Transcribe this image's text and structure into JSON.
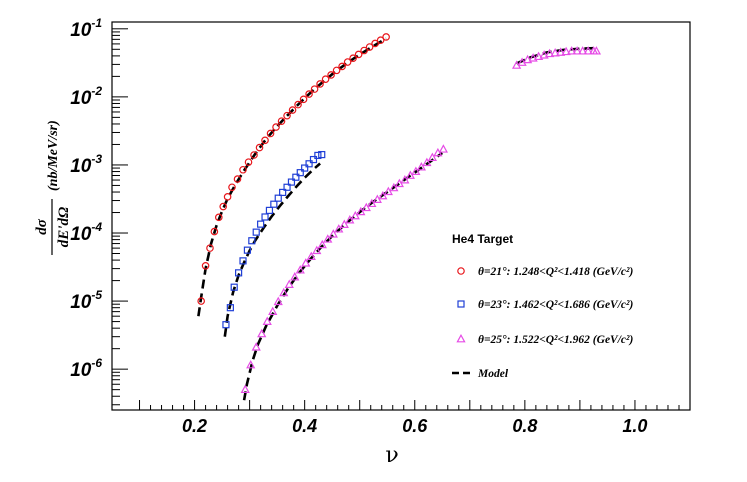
{
  "chart_data": {
    "type": "scatter",
    "xlabel": "ν",
    "ylabel": {
      "numerator": "dσ",
      "denominator": "dE'dΩ",
      "unit": "(nb/MeV/sr)"
    },
    "xlim": [
      0.05,
      1.1
    ],
    "ylim_log10": [
      -6.6,
      -0.9
    ],
    "yscale": "log",
    "x_ticks": [
      "0.2",
      "0.4",
      "0.6",
      "0.8",
      "1.0"
    ],
    "x_tick_values": [
      0.2,
      0.4,
      0.6,
      0.8,
      1.0
    ],
    "y_tick_exponents": [
      -6,
      -5,
      -4,
      -3,
      -2,
      -1
    ],
    "y_tick_base": "10",
    "grid": false,
    "legend_title": "He4 Target",
    "legend_position": "right",
    "series": [
      {
        "name": "θ=21°: 1.248<Q²<1.418 (GeV/c²)",
        "marker": "circle",
        "color": "#e8161b",
        "points": [
          [
            0.212,
            1e-05
          ],
          [
            0.22,
            3.3e-05
          ],
          [
            0.228,
            6e-05
          ],
          [
            0.236,
            0.000105
          ],
          [
            0.244,
            0.00017
          ],
          [
            0.252,
            0.000245
          ],
          [
            0.26,
            0.00034
          ],
          [
            0.268,
            0.00047
          ],
          [
            0.278,
            0.00062
          ],
          [
            0.288,
            0.00085
          ],
          [
            0.298,
            0.0011
          ],
          [
            0.308,
            0.0014
          ],
          [
            0.318,
            0.0018
          ],
          [
            0.328,
            0.0023
          ],
          [
            0.338,
            0.0029
          ],
          [
            0.348,
            0.0036
          ],
          [
            0.358,
            0.0044
          ],
          [
            0.368,
            0.0053
          ],
          [
            0.378,
            0.0064
          ],
          [
            0.388,
            0.0077
          ],
          [
            0.398,
            0.0092
          ],
          [
            0.408,
            0.011
          ],
          [
            0.418,
            0.013
          ],
          [
            0.428,
            0.0155
          ],
          [
            0.438,
            0.0182
          ],
          [
            0.448,
            0.021
          ],
          [
            0.458,
            0.0245
          ],
          [
            0.468,
            0.028
          ],
          [
            0.478,
            0.0325
          ],
          [
            0.488,
            0.037
          ],
          [
            0.498,
            0.042
          ],
          [
            0.508,
            0.048
          ],
          [
            0.518,
            0.054
          ],
          [
            0.528,
            0.061
          ],
          [
            0.538,
            0.068
          ],
          [
            0.548,
            0.076
          ]
        ]
      },
      {
        "name": "θ=23°: 1.462<Q²<1.686 (GeV/c²)",
        "marker": "square",
        "color": "#1f3fd6",
        "points": [
          [
            0.257,
            4.5e-06
          ],
          [
            0.265,
            8e-06
          ],
          [
            0.272,
            1.6e-05
          ],
          [
            0.28,
            2.6e-05
          ],
          [
            0.288,
            3.9e-05
          ],
          [
            0.296,
            5.6e-05
          ],
          [
            0.304,
            7.7e-05
          ],
          [
            0.312,
            0.000103
          ],
          [
            0.32,
            0.000135
          ],
          [
            0.328,
            0.000172
          ],
          [
            0.336,
            0.000215
          ],
          [
            0.344,
            0.000265
          ],
          [
            0.352,
            0.000325
          ],
          [
            0.36,
            0.000395
          ],
          [
            0.368,
            0.00047
          ],
          [
            0.376,
            0.00056
          ],
          [
            0.384,
            0.00066
          ],
          [
            0.392,
            0.00077
          ],
          [
            0.4,
            0.0009
          ],
          [
            0.408,
            0.00104
          ],
          [
            0.416,
            0.0012
          ],
          [
            0.424,
            0.00138
          ],
          [
            0.431,
            0.00142
          ]
        ]
      },
      {
        "name": "θ=25°: 1.522<Q²<1.962 (GeV/c²)",
        "marker": "triangle",
        "color": "#e64ce6",
        "points": [
          [
            0.292,
            5e-07
          ],
          [
            0.302,
            1.15e-06
          ],
          [
            0.312,
            2.1e-06
          ],
          [
            0.322,
            3.3e-06
          ],
          [
            0.332,
            5e-06
          ],
          [
            0.342,
            7e-06
          ],
          [
            0.352,
            9.8e-06
          ],
          [
            0.362,
            1.32e-05
          ],
          [
            0.372,
            1.75e-05
          ],
          [
            0.382,
            2.25e-05
          ],
          [
            0.392,
            2.85e-05
          ],
          [
            0.402,
            3.6e-05
          ],
          [
            0.412,
            4.5e-05
          ],
          [
            0.422,
            5.5e-05
          ],
          [
            0.432,
            6.7e-05
          ],
          [
            0.442,
            8.1e-05
          ],
          [
            0.452,
            9.6e-05
          ],
          [
            0.462,
            0.000114
          ],
          [
            0.472,
            0.000133
          ],
          [
            0.482,
            0.000155
          ],
          [
            0.492,
            0.000178
          ],
          [
            0.502,
            0.000205
          ],
          [
            0.512,
            0.000235
          ],
          [
            0.522,
            0.00027
          ],
          [
            0.532,
            0.00031
          ],
          [
            0.542,
            0.00035
          ],
          [
            0.552,
            0.000405
          ],
          [
            0.562,
            0.00046
          ],
          [
            0.572,
            0.00053
          ],
          [
            0.582,
            0.0006
          ],
          [
            0.592,
            0.0007
          ],
          [
            0.602,
            0.0008
          ],
          [
            0.612,
            0.00093
          ],
          [
            0.622,
            0.00108
          ],
          [
            0.632,
            0.00128
          ],
          [
            0.642,
            0.0015
          ],
          [
            0.652,
            0.0017
          ],
          [
            0.785,
            0.029
          ],
          [
            0.795,
            0.032
          ],
          [
            0.805,
            0.035
          ],
          [
            0.815,
            0.037
          ],
          [
            0.825,
            0.039
          ],
          [
            0.835,
            0.041
          ],
          [
            0.845,
            0.043
          ],
          [
            0.855,
            0.044
          ],
          [
            0.865,
            0.045
          ],
          [
            0.875,
            0.046
          ],
          [
            0.885,
            0.047
          ],
          [
            0.895,
            0.047
          ],
          [
            0.905,
            0.047
          ],
          [
            0.915,
            0.047
          ],
          [
            0.925,
            0.047
          ],
          [
            0.93,
            0.047
          ]
        ]
      },
      {
        "name": "Model",
        "marker": "dashed-line",
        "color": "#000000",
        "segments": [
          [
            [
              0.207,
              6e-06
            ],
            [
              0.212,
              1.15e-05
            ],
            [
              0.22,
              3e-05
            ],
            [
              0.23,
              7e-05
            ],
            [
              0.24,
              0.00013
            ],
            [
              0.25,
              0.00021
            ],
            [
              0.26,
              0.00032
            ],
            [
              0.275,
              0.00053
            ],
            [
              0.29,
              0.00083
            ],
            [
              0.31,
              0.00145
            ],
            [
              0.33,
              0.0024
            ],
            [
              0.35,
              0.0037
            ],
            [
              0.37,
              0.0055
            ],
            [
              0.39,
              0.008
            ],
            [
              0.41,
              0.0114
            ],
            [
              0.43,
              0.0158
            ],
            [
              0.45,
              0.0215
            ],
            [
              0.47,
              0.0285
            ],
            [
              0.49,
              0.037
            ],
            [
              0.51,
              0.047
            ],
            [
              0.53,
              0.059
            ],
            [
              0.548,
              0.072
            ]
          ],
          [
            [
              0.255,
              3e-06
            ],
            [
              0.26,
              6e-06
            ],
            [
              0.27,
              1.35e-05
            ],
            [
              0.28,
              2.4e-05
            ],
            [
              0.29,
              3.7e-05
            ],
            [
              0.3,
              5.5e-05
            ],
            [
              0.31,
              7.7e-05
            ],
            [
              0.325,
              0.000118
            ],
            [
              0.34,
              0.000175
            ],
            [
              0.355,
              0.00025
            ],
            [
              0.37,
              0.00035
            ],
            [
              0.385,
              0.00048
            ],
            [
              0.4,
              0.00065
            ],
            [
              0.415,
              0.00085
            ],
            [
              0.428,
              0.00105
            ]
          ],
          [
            [
              0.29,
              3.5e-07
            ],
            [
              0.295,
              6e-07
            ],
            [
              0.305,
              1.3e-06
            ],
            [
              0.315,
              2.3e-06
            ],
            [
              0.33,
              4.3e-06
            ],
            [
              0.35,
              8.5e-06
            ],
            [
              0.37,
              1.55e-05
            ],
            [
              0.39,
              2.6e-05
            ],
            [
              0.41,
              4.1e-05
            ],
            [
              0.43,
              6.2e-05
            ],
            [
              0.45,
              9e-05
            ],
            [
              0.47,
              0.000127
            ],
            [
              0.49,
              0.000175
            ],
            [
              0.51,
              0.000235
            ],
            [
              0.53,
              0.00031
            ],
            [
              0.55,
              0.0004
            ],
            [
              0.57,
              0.00052
            ],
            [
              0.59,
              0.00068
            ],
            [
              0.61,
              0.00088
            ],
            [
              0.63,
              0.00115
            ],
            [
              0.65,
              0.0015
            ]
          ],
          [
            [
              0.785,
              0.031
            ],
            [
              0.81,
              0.038
            ],
            [
              0.84,
              0.045
            ],
            [
              0.87,
              0.049
            ],
            [
              0.9,
              0.051
            ],
            [
              0.93,
              0.052
            ]
          ]
        ]
      }
    ]
  }
}
